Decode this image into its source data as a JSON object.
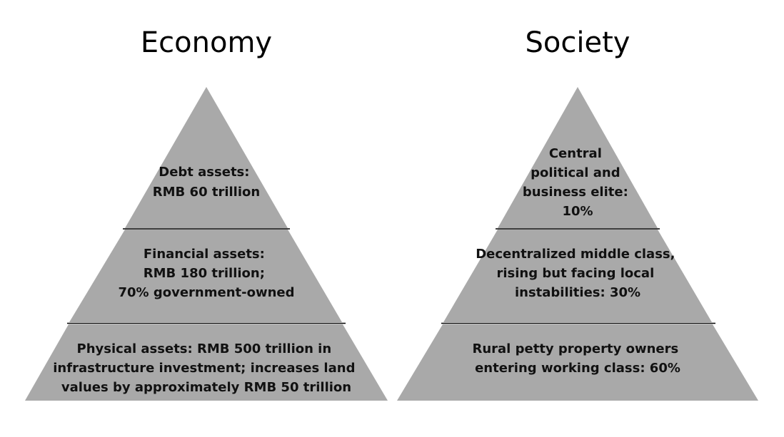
{
  "colors": {
    "pyramid_fill": "#a9a9a9",
    "divider": "#000000",
    "text": "#111111"
  },
  "economy": {
    "title": "Economy",
    "tiers": [
      {
        "lines": [
          "Debt assets:",
          "RMB 60 trillion"
        ]
      },
      {
        "lines": [
          "Financial assets:",
          "RMB 180 trillion;",
          "70% government-owned"
        ]
      },
      {
        "lines": [
          "Physical assets: RMB 500 trillion in",
          "infrastructure investment; increases land",
          "values by approximately RMB 50 trillion"
        ]
      }
    ]
  },
  "society": {
    "title": "Society",
    "tiers": [
      {
        "lines": [
          "Central",
          "political and",
          "business elite:",
          "10%"
        ]
      },
      {
        "lines": [
          "Decentralized middle class,",
          "rising but facing local",
          "instabilities: 30%"
        ]
      },
      {
        "lines": [
          "Rural petty property owners",
          "entering working class: 60%"
        ]
      }
    ]
  }
}
